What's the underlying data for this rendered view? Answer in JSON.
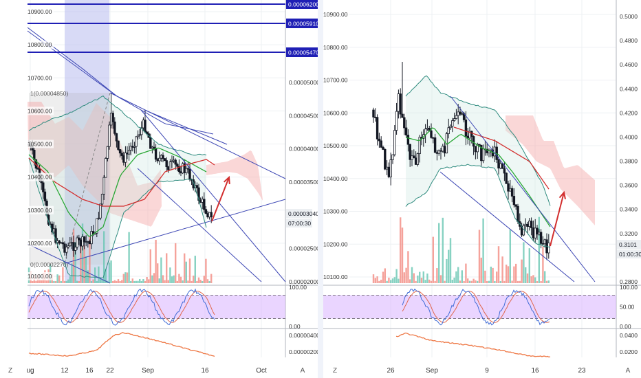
{
  "left_chart": {
    "left_axis": {
      "ticks": [
        "10900.00",
        "10800.00",
        "10700.00",
        "10600.00",
        "10500.00",
        "10400.00",
        "10300.00",
        "10200.00",
        "10100.00"
      ],
      "values": [
        10900,
        10800,
        10700,
        10600,
        10500,
        10400,
        10300,
        10200,
        10100
      ]
    },
    "right_axis": {
      "ticks": [
        "0.00005000",
        "0.00004500",
        "0.00004000",
        "0.00003500",
        "0.00002500",
        "0.00002000"
      ],
      "values": [
        5e-05,
        4.5e-05,
        4e-05,
        3.5e-05,
        2.5e-05,
        2e-05
      ]
    },
    "horizontal_levels": [
      {
        "label": "0.00006200",
        "value": 6.2e-05
      },
      {
        "label": "0.00005910",
        "value": 5.91e-05
      },
      {
        "label": "0.00005470",
        "value": 5.47e-05
      }
    ],
    "current_price": "0.00003040",
    "countdown": "07:00:30",
    "fib_top_label": "1(0.00004850)",
    "fib_bottom_label": "0(0.00002270)",
    "time_ticks": [
      "ug",
      "12",
      "16",
      "22",
      "Sep",
      "16",
      "Oct"
    ],
    "timezone_button": "Z",
    "auto_button": "A",
    "oscillator": {
      "ticks": [
        "100.00",
        "0.00"
      ],
      "values": [
        100,
        0
      ],
      "upper_band": 80,
      "lower_band": 20
    },
    "bottom_indicator": {
      "ticks": [
        "0.00000400",
        "0.00000200"
      ],
      "values": [
        4e-06,
        2e-06
      ]
    }
  },
  "right_chart": {
    "left_axis": {
      "ticks": [
        "10900.00",
        "10800.00",
        "10700.00",
        "10600.00",
        "10500.00",
        "10400.00",
        "10300.00",
        "10200.00",
        "10100.00"
      ],
      "values": [
        10900,
        10800,
        10700,
        10600,
        10500,
        10400,
        10300,
        10200,
        10100
      ]
    },
    "right_axis": {
      "ticks": [
        "0.5000",
        "0.4800",
        "0.4600",
        "0.4400",
        "0.4200",
        "0.4000",
        "0.3800",
        "0.3600",
        "0.3400",
        "0.3200",
        "0.2800"
      ],
      "values": [
        0.5,
        0.48,
        0.46,
        0.44,
        0.42,
        0.4,
        0.38,
        0.36,
        0.34,
        0.32,
        0.28
      ]
    },
    "current_price": "0.3101",
    "countdown": "01:00:30",
    "time_ticks": [
      "26",
      "Sep",
      "9",
      "16",
      "23"
    ],
    "timezone_button": "Z",
    "auto_button": "A",
    "oscillator": {
      "ticks": [
        "100.00",
        "50.00",
        "0.00"
      ],
      "values": [
        100,
        50,
        0
      ],
      "upper_band": 80,
      "lower_band": 20
    },
    "bottom_indicator": {
      "ticks": [
        "0.0400",
        "0.0200"
      ],
      "values": [
        0.04,
        0.02
      ]
    }
  },
  "colors": {
    "candle": "#131722",
    "grid": "#eef0f3",
    "level_line": "#1f1fb5",
    "trend_line": "#3c46b4",
    "bollinger": "#2e8b7e",
    "ma_fast": "#2aa836",
    "ma_slow": "#d32f2f",
    "cloud": "#f4a7a7",
    "volume_up": "#69c7b3",
    "volume_down": "#f28b82",
    "osc_band": "#d9b3ff",
    "osc_k": "#3f6bd6",
    "osc_d": "#e0674d",
    "indicator_line": "#ee7744",
    "arrow": "#d32f2f",
    "highlight_column": "#b8bcef"
  }
}
